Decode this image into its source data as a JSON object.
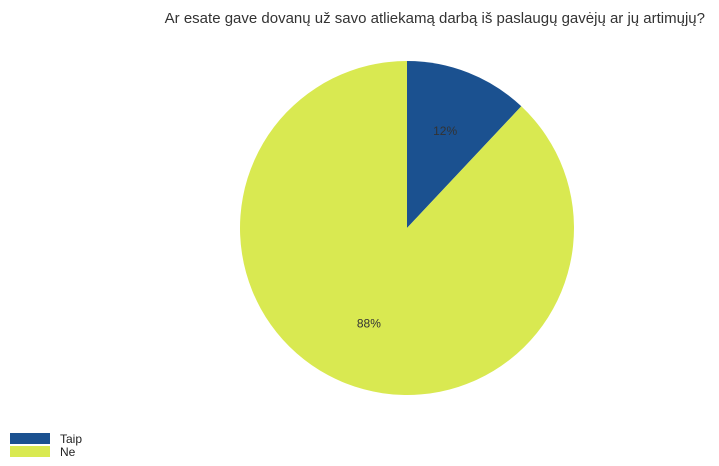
{
  "chart_data": {
    "type": "pie",
    "title": "Ar esate gave dovanų už savo atliekamą darbą iš paslaugų gavėjų ar jų artimųjų?",
    "slices": [
      {
        "label": "Taip",
        "value": 12,
        "display": "12%",
        "color": "#1b5190"
      },
      {
        "label": "Ne",
        "value": 88,
        "display": "88%",
        "color": "#d9e951"
      }
    ],
    "legend_position": "bottom-left"
  }
}
